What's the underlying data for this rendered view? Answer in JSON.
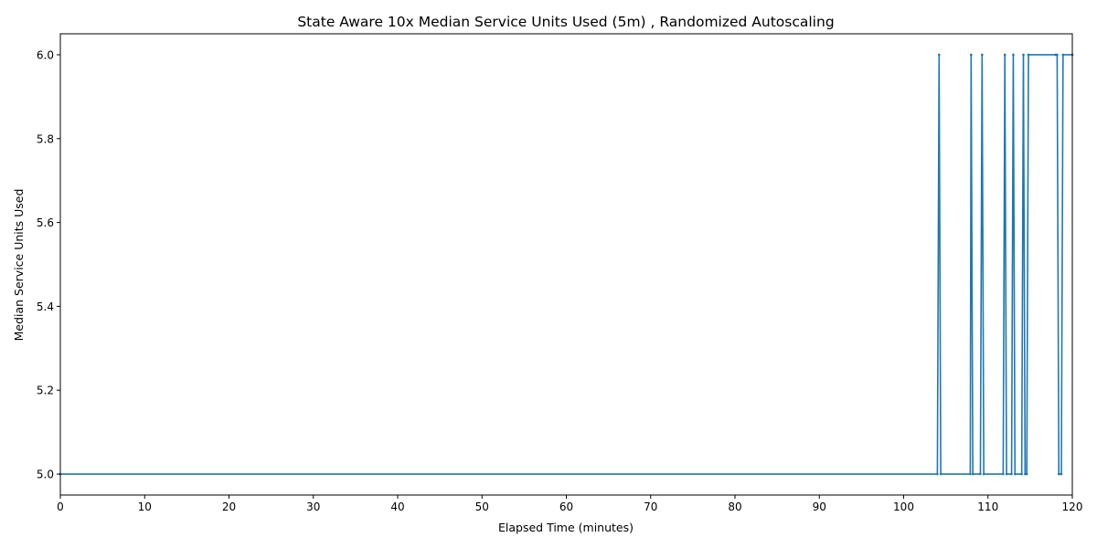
{
  "chart_data": {
    "type": "line",
    "title": "State Aware 10x Median Service Units Used (5m) , Randomized Autoscaling",
    "xlabel": "Elapsed Time (minutes)",
    "ylabel": "Median Service Units Used",
    "xlim": [
      0,
      120
    ],
    "ylim": [
      4.95,
      6.05
    ],
    "xticks": [
      0,
      10,
      20,
      30,
      40,
      50,
      60,
      70,
      80,
      90,
      100,
      110,
      120
    ],
    "yticks": [
      5.0,
      5.2,
      5.4,
      5.6,
      5.8,
      6.0
    ],
    "xtick_labels": [
      "0",
      "10",
      "20",
      "30",
      "40",
      "50",
      "60",
      "70",
      "80",
      "90",
      "100",
      "110",
      "120"
    ],
    "ytick_labels": [
      "5.0",
      "5.2",
      "5.4",
      "5.6",
      "5.8",
      "6.0"
    ],
    "grid": false,
    "series": [
      {
        "color": "#1f77b4",
        "marker": "small-dot",
        "x": [
          0,
          104.0,
          104.2,
          104.4,
          107.9,
          108.0,
          108.2,
          109.1,
          109.3,
          109.5,
          111.8,
          112.0,
          112.2,
          112.8,
          113.0,
          113.2,
          114.0,
          114.2,
          114.4,
          114.6,
          114.8,
          118.0,
          118.2,
          118.4,
          118.7,
          118.9,
          120.0
        ],
        "y": [
          5.0,
          5.0,
          6.0,
          5.0,
          5.0,
          6.0,
          5.0,
          5.0,
          6.0,
          5.0,
          5.0,
          6.0,
          5.0,
          5.0,
          6.0,
          5.0,
          5.0,
          6.0,
          5.0,
          5.0,
          6.0,
          6.0,
          6.0,
          5.0,
          5.0,
          6.0,
          6.0
        ]
      }
    ]
  }
}
